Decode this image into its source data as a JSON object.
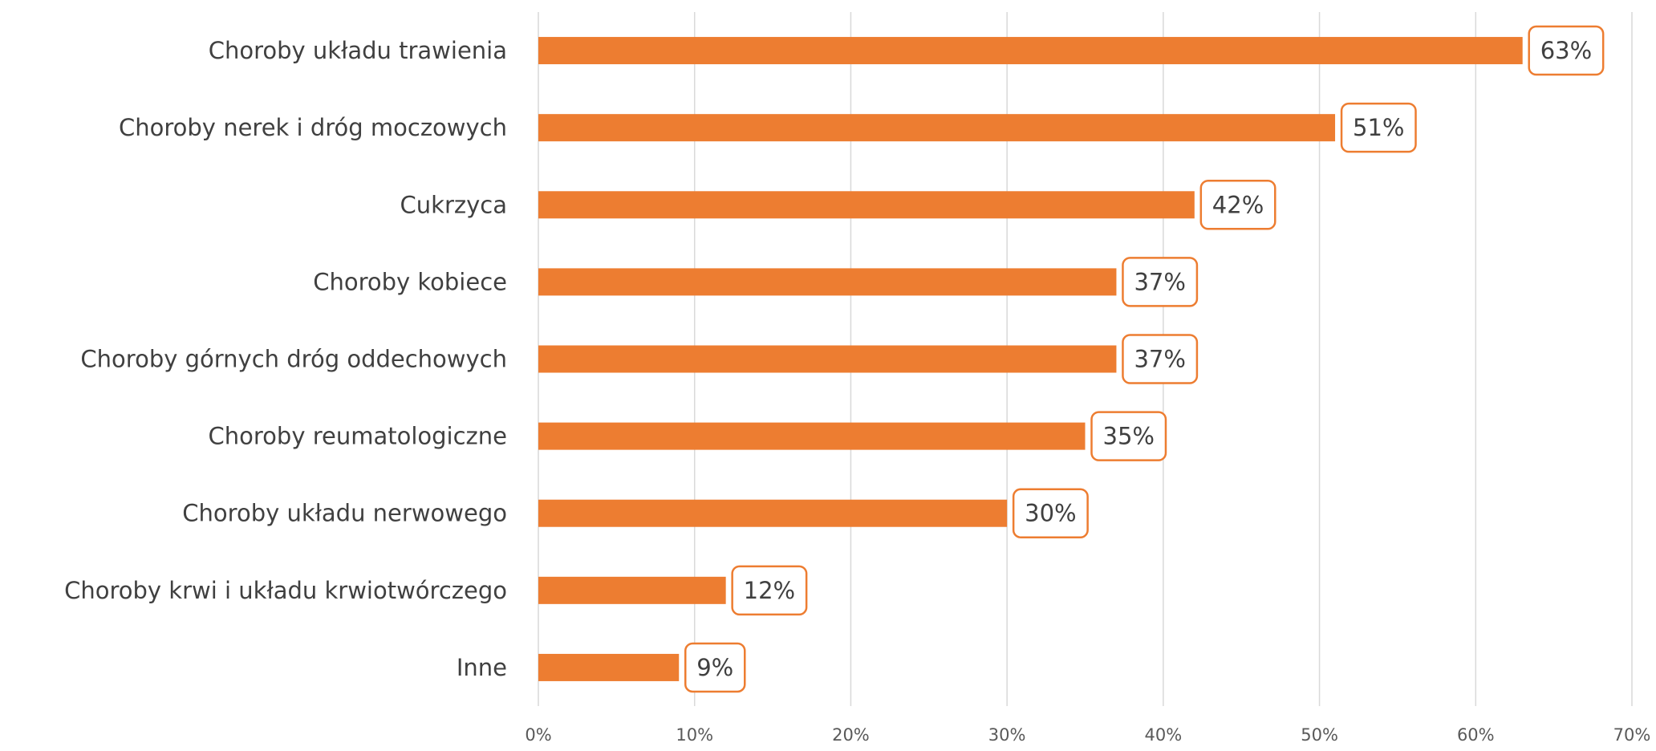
{
  "chart_data": {
    "type": "bar",
    "orientation": "horizontal",
    "categories": [
      "Choroby układu trawienia",
      "Choroby nerek i dróg moczowych",
      "Cukrzyca",
      "Choroby kobiece",
      "Choroby górnych dróg oddechowych",
      "Choroby reumatologiczne",
      "Choroby układu nerwowego",
      "Choroby krwi i układu krwiotwórczego",
      "Inne"
    ],
    "values": [
      63,
      51,
      42,
      37,
      37,
      35,
      30,
      12,
      9
    ],
    "value_labels": [
      "63%",
      "51%",
      "42%",
      "37%",
      "37%",
      "35%",
      "30%",
      "12%",
      "9%"
    ],
    "color": "#ed7d31",
    "xlim": [
      0,
      70
    ],
    "xticks": [
      {
        "value": 0,
        "label": "0%"
      },
      {
        "value": 10,
        "label": "10%"
      },
      {
        "value": 20,
        "label": "20%"
      },
      {
        "value": 30,
        "label": "30%"
      },
      {
        "value": 40,
        "label": "40%"
      },
      {
        "value": 50,
        "label": "50%"
      },
      {
        "value": 60,
        "label": "60%"
      },
      {
        "value": 70,
        "label": "70%"
      }
    ],
    "grid": true
  }
}
